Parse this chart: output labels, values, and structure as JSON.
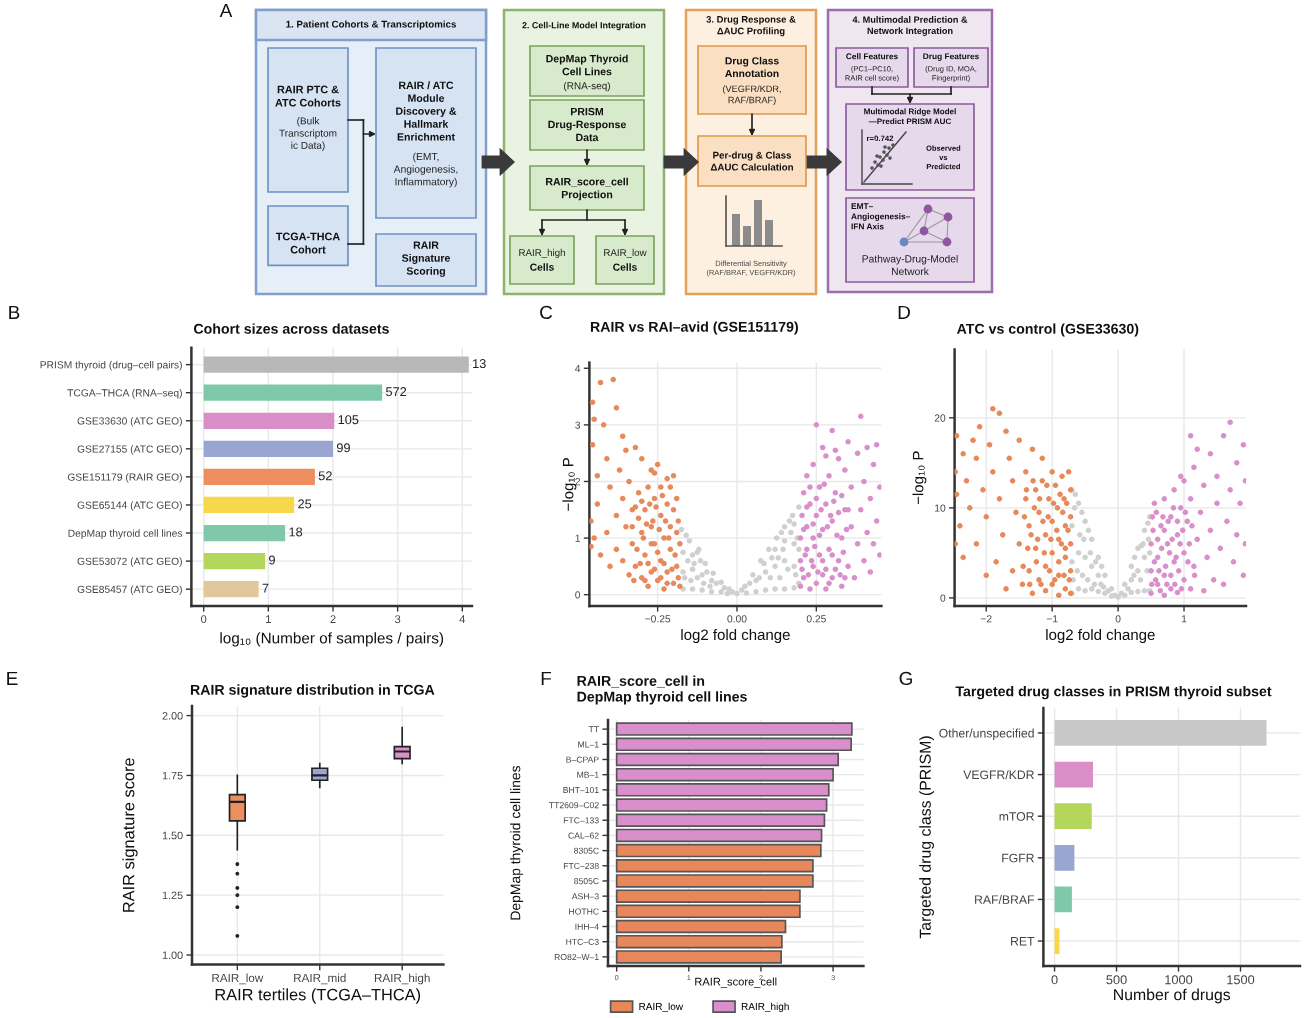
{
  "chart_data": [
    {
      "type": "other",
      "annotations": [
        "A",
        "1. Patient Cohorts & Transcriptomics",
        "RAIR PTC &\nATC Cohorts",
        "(Bulk\nTranscriptom\nic Data)",
        "TCGA-THCA\nCohort",
        "RAIR / ATC\nModule\nDiscovery &\nHallmark\nEnrichment",
        "(EMT,\nAngiogenesis,\nInflammatory)",
        "RAIR\nSignature\nScoring",
        "2. Cell-Line Model Integration",
        "DepMap Thyroid\nCell Lines",
        "(RNA-seq)",
        "PRISM\nDrug-Response\nData",
        "RAIR_score_cell\nProjection",
        "RAIR_high",
        "Cells",
        "RAIR_low",
        "Cells",
        "3. Drug Response &\nΔAUC Profiling",
        "Drug Class\nAnnotation",
        "(VEGFR/KDR,\nRAF/BRAF)",
        "Per-drug & Class\nΔAUC Calculation",
        "Differential Sensitivity\n(RAF/BRAF, VEGFR/KDR)",
        "4. Multimodal Prediction &\nNetwork Integration",
        "Cell Features",
        "(PC1–PC10,\nRAIR cell score)",
        "Drug Features",
        "(Drug ID, MOA,\nFingerprint)",
        "Multimodal Ridge Model\n—Predict PRISM AUC",
        "r=0.742",
        "Observed\nvs\nPredicted",
        "EMT–\nAngiogenesis–\nIFN Axis",
        "Pathway-Drug-Model\nNetwork"
      ]
    },
    {
      "type": "bar",
      "orientation": "horizontal",
      "title": "Cohort sizes across datasets",
      "xlabel": "log₁₀ (Number of samples / pairs)",
      "annotations": [
        "B",
        {
          "text": "13",
          "x": 4.1,
          "y": "PRISM thyroid (drug–cell pairs)"
        },
        {
          "text": "572",
          "x": 2.76,
          "y": "TCGA–THCA (RNA–seq)"
        },
        {
          "text": "105",
          "x": 2.02,
          "y": "GSE33630 (ATC GEO)"
        },
        {
          "text": "99",
          "x": 2.0,
          "y": "GSE27155 (ATC GEO)"
        },
        {
          "text": "52",
          "x": 1.72,
          "y": "GSE151179 (RAIR GEO)"
        },
        {
          "text": "25",
          "x": 1.4,
          "y": "GSE65144 (ATC GEO)"
        },
        {
          "text": "18",
          "x": 1.26,
          "y": "DepMap thyroid cell lines"
        },
        {
          "text": "9",
          "x": 0.95,
          "y": "GSE53072 (ATC GEO)"
        },
        {
          "text": "7",
          "x": 0.85,
          "y": "GSE85457 (ATC GEO)"
        }
      ],
      "categories": [
        "PRISM thyroid (drug–cell pairs)",
        "TCGA–THCA (RNA–seq)",
        "GSE33630 (ATC GEO)",
        "GSE27155 (ATC GEO)",
        "GSE151179 (RAIR GEO)",
        "GSE65144 (ATC GEO)",
        "DepMap thyroid cell lines",
        "GSE53072 (ATC GEO)",
        "GSE85457 (ATC GEO)"
      ],
      "values": [
        4.1,
        2.76,
        2.02,
        2.0,
        1.72,
        1.4,
        1.26,
        0.95,
        0.85
      ],
      "colors": [
        "#b8b8b8",
        "#7fc8a9",
        "#d98ec8",
        "#98a6d1",
        "#ee8d5f",
        "#f7d84a",
        "#7fc8a9",
        "#b3d65b",
        "#e0c89a"
      ],
      "xlim": [
        -0.19,
        4.15
      ],
      "xticks": [
        0,
        1,
        2,
        3,
        4
      ],
      "grid": true
    },
    {
      "type": "scatter",
      "title": "RAIR vs RAI–avid (GSE151179)",
      "xlabel": "log2 fold change",
      "ylabel": "−log₁₀ P",
      "annotations": [
        "C"
      ],
      "marker": "circle",
      "grid": true,
      "xlim": [
        -0.465,
        0.455
      ],
      "xticks": [
        {
          "value": -0.25,
          "label": "−0.25"
        },
        {
          "value": 0,
          "label": "0.00"
        },
        {
          "value": 0.25,
          "label": "0.25"
        }
      ],
      "ylim": [
        -0.2,
        4.1
      ],
      "yticks": [
        0,
        1,
        2,
        3,
        4
      ],
      "series": [
        {
          "color": "#d0d0d0",
          "x": [
            -0.175,
            -0.15,
            -0.125,
            -0.1,
            -0.075,
            -0.05,
            -0.025,
            0,
            0.025,
            0.05,
            0.075,
            0.1,
            0.125,
            0.15,
            0.175,
            0.195,
            -0.17,
            -0.17,
            -0.17,
            -0.14,
            -0.14,
            -0.14,
            -0.11,
            -0.11,
            -0.08,
            -0.08,
            -0.05,
            -0.03,
            0.03,
            0.06,
            0.06,
            0.09,
            0.09,
            0.12,
            0.12,
            0.12,
            0.15,
            0.15,
            0.15,
            0.18,
            0.18,
            0.18,
            0.18,
            0.195,
            0.195,
            -0.16,
            -0.12,
            0.14,
            0.165,
            -0.165,
            -0.155,
            -0.145,
            -0.135,
            -0.125,
            -0.115,
            -0.105,
            -0.095,
            -0.085,
            -0.065,
            -0.04,
            -0.015,
            0.015,
            0.04,
            0.07,
            0.085,
            0.105,
            0.11,
            0.135,
            0.145,
            0.16,
            0.17,
            0.185,
            0.19,
            0.13
          ],
          "values": [
            1.15,
            0.95,
            0.75,
            0.55,
            0.38,
            0.22,
            0.1,
            0.02,
            0.15,
            0.35,
            0.6,
            0.8,
            1.0,
            1.2,
            1.4,
            1.55,
            0.1,
            0.4,
            0.75,
            0.1,
            0.45,
            0.7,
            0.08,
            0.35,
            0.05,
            0.25,
            0.05,
            0.02,
            0.03,
            0.05,
            0.25,
            0.08,
            0.4,
            0.1,
            0.5,
            0.8,
            0.1,
            0.6,
            0.95,
            0.12,
            0.5,
            0.9,
            1.25,
            0.2,
            0.8,
            1.05,
            0.8,
            1.1,
            1.3,
            0.3,
            0.6,
            0.25,
            0.55,
            0.3,
            0.6,
            0.2,
            0.4,
            0.15,
            0.2,
            0.12,
            0.05,
            0.08,
            0.2,
            0.3,
            0.55,
            0.3,
            0.65,
            0.3,
            0.8,
            0.45,
            1.1,
            0.35,
            1.0,
            0.65
          ]
        },
        {
          "color": "#e8895c",
          "x": [
            -0.18,
            -0.19,
            -0.18,
            -0.185,
            -0.19,
            -0.2,
            -0.2,
            -0.21,
            -0.21,
            -0.22,
            -0.22,
            -0.22,
            -0.23,
            -0.23,
            -0.24,
            -0.24,
            -0.24,
            -0.25,
            -0.25,
            -0.26,
            -0.26,
            -0.27,
            -0.27,
            -0.27,
            -0.28,
            -0.28,
            -0.29,
            -0.29,
            -0.3,
            -0.3,
            -0.3,
            -0.31,
            -0.32,
            -0.32,
            -0.33,
            -0.33,
            -0.34,
            -0.34,
            -0.35,
            -0.35,
            -0.36,
            -0.36,
            -0.37,
            -0.38,
            -0.38,
            -0.38,
            -0.39,
            -0.4,
            -0.4,
            -0.41,
            -0.41,
            -0.42,
            -0.43,
            -0.43,
            -0.44,
            -0.44,
            -0.45,
            -0.45,
            -0.455,
            -0.455,
            -0.46,
            -0.46,
            -0.36,
            -0.26,
            -0.185,
            -0.19,
            -0.195,
            -0.2,
            -0.205,
            -0.21,
            -0.215,
            -0.22,
            -0.225,
            -0.23,
            -0.235,
            -0.24,
            -0.245,
            -0.25,
            -0.255,
            -0.26,
            -0.265,
            -0.27,
            -0.275,
            -0.28,
            -0.285,
            -0.29,
            -0.295,
            -0.3,
            -0.305,
            -0.31,
            -0.315,
            -0.32,
            -0.325,
            -0.33
          ],
          "values": [
            0.15,
            0.5,
            0.9,
            1.3,
            1.7,
            2.1,
            0.2,
            0.8,
            1.2,
            0.4,
            1.6,
            2.05,
            0.1,
            1.0,
            0.6,
            1.4,
            1.9,
            0.25,
            2.3,
            0.9,
            1.7,
            0.4,
            1.2,
            2.2,
            0.15,
            1.9,
            0.7,
            1.5,
            0.3,
            1.1,
            2.4,
            1.8,
            0.5,
            2.6,
            0.9,
            1.5,
            0.35,
            2.0,
            1.2,
            2.55,
            0.6,
            1.7,
            2.2,
            0.8,
            1.4,
            3.3,
            3.8,
            0.5,
            1.9,
            1.1,
            2.4,
            3.0,
            3.75,
            0.7,
            1.6,
            2.1,
            3.1,
            1.0,
            2.65,
            3.4,
            0.85,
            1.3,
            2.8,
            2.15,
            0.3,
            1.1,
            0.7,
            1.5,
            0.45,
            1.9,
            1.0,
            0.2,
            1.3,
            0.55,
            1.75,
            0.3,
            1.15,
            0.75,
            1.55,
            0.45,
            1.3,
            0.9,
            1.6,
            0.55,
            1.25,
            0.25,
            1.0,
            1.65,
            0.55,
            1.35,
            0.8,
            1.55,
            0.25,
            1.2
          ]
        },
        {
          "color": "#d88fcb",
          "x": [
            0.2,
            0.2,
            0.2,
            0.205,
            0.21,
            0.21,
            0.22,
            0.22,
            0.22,
            0.23,
            0.23,
            0.24,
            0.24,
            0.24,
            0.25,
            0.25,
            0.25,
            0.26,
            0.26,
            0.27,
            0.27,
            0.27,
            0.28,
            0.28,
            0.29,
            0.29,
            0.3,
            0.3,
            0.3,
            0.31,
            0.32,
            0.32,
            0.33,
            0.33,
            0.34,
            0.34,
            0.35,
            0.35,
            0.36,
            0.36,
            0.37,
            0.38,
            0.38,
            0.39,
            0.39,
            0.4,
            0.4,
            0.41,
            0.41,
            0.42,
            0.42,
            0.43,
            0.43,
            0.44,
            0.44,
            0.45,
            0.45,
            0.31,
            0.28,
            0.205,
            0.21,
            0.215,
            0.22,
            0.225,
            0.23,
            0.235,
            0.24,
            0.245,
            0.25,
            0.255,
            0.26,
            0.265,
            0.27,
            0.275,
            0.28,
            0.285,
            0.29,
            0.295,
            0.3,
            0.305,
            0.31,
            0.315,
            0.32,
            0.325,
            0.33,
            0.335,
            0.34,
            0.345,
            0.35
          ],
          "values": [
            0.15,
            0.6,
            1.0,
            1.4,
            1.8,
            0.3,
            0.8,
            1.2,
            2.1,
            0.1,
            1.6,
            0.5,
            1.0,
            2.3,
            0.2,
            1.4,
            3.0,
            0.7,
            1.9,
            0.35,
            1.15,
            2.6,
            0.1,
            1.6,
            0.8,
            2.1,
            0.3,
            1.3,
            2.9,
            1.8,
            0.6,
            2.4,
            1.0,
            0.15,
            1.5,
            2.2,
            0.5,
            2.7,
            1.2,
            1.9,
            0.3,
            0.9,
            2.5,
            3.15,
            1.5,
            0.6,
            2.0,
            1.1,
            2.6,
            0.4,
            1.7,
            2.3,
            0.9,
            1.3,
            2.65,
            0.7,
            1.9,
            2.55,
            2.45,
            0.45,
            1.15,
            0.7,
            1.55,
            0.35,
            1.9,
            0.6,
            1.25,
            0.85,
            1.7,
            0.4,
            1.05,
            1.5,
            0.6,
            1.95,
            0.45,
            1.2,
            0.2,
            1.4,
            0.7,
            1.65,
            0.45,
            1.05,
            1.45,
            0.35,
            1.75,
            0.75,
            0.3,
            1.15,
            1.5
          ]
        }
      ]
    },
    {
      "type": "scatter",
      "title": "ATC vs control (GSE33630)",
      "xlabel": "log2 fold change",
      "ylabel": "−log₁₀ P",
      "annotations": [
        "D"
      ],
      "marker": "circle",
      "grid": true,
      "xlim": [
        -2.48,
        1.94
      ],
      "xticks": [
        {
          "value": -2,
          "label": "−2"
        },
        {
          "value": -1,
          "label": "−1"
        },
        0,
        1
      ],
      "ylim": [
        -0.9,
        27.6
      ],
      "yticks": [
        0,
        10,
        20
      ],
      "series": [
        {
          "color": "#d0d0d0",
          "x": [
            -0.7,
            -0.6,
            -0.5,
            -0.4,
            -0.3,
            -0.2,
            -0.1,
            0,
            0.1,
            0.2,
            0.3,
            0.4,
            0.48,
            -0.7,
            -0.7,
            -0.7,
            -0.6,
            -0.6,
            -0.5,
            -0.5,
            -0.4,
            -0.4,
            -0.3,
            -0.3,
            -0.2,
            -0.1,
            0.1,
            0.2,
            0.2,
            0.3,
            0.3,
            0.4,
            0.4,
            0.48,
            0.48,
            -0.65,
            -0.55,
            -0.45,
            0.45,
            -0.25,
            0.25,
            -0.68,
            -0.66,
            -0.62,
            -0.58,
            -0.54,
            -0.52,
            -0.46,
            -0.42,
            -0.36,
            -0.34,
            -0.26,
            -0.22,
            -0.15,
            -0.05,
            0.05,
            0.15,
            0.24,
            0.34,
            0.38,
            0.44,
            0.46,
            0.35
          ],
          "values": [
            12,
            10.5,
            8.5,
            6.5,
            4.5,
            2.5,
            1,
            0.1,
            1.5,
            3.5,
            5.5,
            7.5,
            9,
            0.5,
            4,
            8,
            1,
            5,
            0.8,
            4.5,
            1,
            3.5,
            0.7,
            2.5,
            0.5,
            0.2,
            0.3,
            0.6,
            2,
            0.7,
            3,
            0.8,
            4.5,
            0.8,
            5,
            11.5,
            9.5,
            7.5,
            8.3,
            3.5,
            4.5,
            2,
            10,
            3,
            7,
            2.5,
            6.5,
            2,
            5,
            1.5,
            4,
            1.5,
            1.2,
            0.8,
            0.3,
            0.5,
            1,
            2.5,
            2,
            6,
            3,
            6.5,
            5.8
          ]
        },
        {
          "color": "#e8895c",
          "x": [
            -0.72,
            -0.72,
            -0.72,
            -0.72,
            -0.72,
            -0.75,
            -0.8,
            -0.8,
            -0.8,
            -0.82,
            -0.85,
            -0.9,
            -0.9,
            -0.9,
            -0.92,
            -0.95,
            -1.0,
            -1.0,
            -1.0,
            -1.0,
            -1.05,
            -1.1,
            -1.1,
            -1.1,
            -1.15,
            -1.15,
            -1.2,
            -1.2,
            -1.25,
            -1.25,
            -1.3,
            -1.3,
            -1.35,
            -1.35,
            -1.4,
            -1.4,
            -1.45,
            -1.5,
            -1.5,
            -1.55,
            -1.6,
            -1.6,
            -1.65,
            -1.7,
            -1.7,
            -1.75,
            -1.8,
            -1.8,
            -1.85,
            -1.9,
            -1.9,
            -1.95,
            -2.0,
            -2.0,
            -2.05,
            -2.1,
            -2.15,
            -2.15,
            -2.2,
            -2.25,
            -2.3,
            -2.35,
            -2.35,
            -2.4,
            -2.45,
            -2.45,
            -2.47,
            -2.47,
            -0.74,
            -0.76,
            -0.78,
            -0.8,
            -0.82,
            -0.84,
            -0.86,
            -0.88,
            -0.9,
            -0.93,
            -0.96,
            -0.98,
            -1.02,
            -1.04,
            -1.06,
            -1.08,
            -1.12,
            -1.14,
            -1.17,
            -1.19,
            -1.22,
            -1.24,
            -1.27,
            -1.29,
            -1.32,
            -1.34,
            -1.37,
            -1.39,
            -1.42,
            -1.44
          ],
          "values": [
            0.5,
            3,
            6,
            9,
            12,
            14,
            1,
            4.5,
            8,
            11,
            13.5,
            0.3,
            2.5,
            6.5,
            10,
            12.5,
            1.5,
            5,
            8.5,
            14,
            11,
            0.8,
            3.5,
            7,
            13,
            15.5,
            2,
            9.5,
            5.5,
            12,
            0.5,
            16.5,
            3,
            8,
            11,
            14,
            1.5,
            6,
            17.5,
            9.5,
            3,
            13,
            15.5,
            18.5,
            1,
            7,
            11,
            20.5,
            4,
            14,
            21,
            17,
            9,
            2.5,
            12,
            19,
            6,
            15.5,
            17.5,
            10,
            13,
            4.5,
            16,
            8,
            11.5,
            18,
            14,
            6,
            2,
            7.5,
            10.5,
            5.5,
            2.5,
            9.5,
            6,
            11.5,
            4,
            7.5,
            2,
            10.5,
            6.5,
            3,
            9,
            12.5,
            5,
            8.5,
            1.5,
            11,
            6.5,
            4,
            10,
            13,
            7,
            1.5,
            5.5,
            12,
            9,
            3.5
          ]
        },
        {
          "color": "#d88fcb",
          "x": [
            0.5,
            0.5,
            0.5,
            0.52,
            0.55,
            0.6,
            0.6,
            0.65,
            0.7,
            0.7,
            0.7,
            0.75,
            0.8,
            0.8,
            0.85,
            0.85,
            0.9,
            0.9,
            0.95,
            1.0,
            1.0,
            1.0,
            1.05,
            1.1,
            1.1,
            1.15,
            1.15,
            1.2,
            1.25,
            1.3,
            1.3,
            1.35,
            1.4,
            1.4,
            1.45,
            1.5,
            1.5,
            1.55,
            1.6,
            1.6,
            1.65,
            1.7,
            1.7,
            1.75,
            1.8,
            1.8,
            1.85,
            1.9,
            1.9,
            1.93,
            1.93,
            1.2,
            1.1,
            0.95,
            0.51,
            0.53,
            0.55,
            0.57,
            0.58,
            0.6,
            0.62,
            0.64,
            0.66,
            0.68,
            0.7,
            0.72,
            0.74,
            0.76,
            0.78,
            0.8,
            0.82,
            0.84,
            0.86,
            0.88,
            0.9,
            0.92,
            0.94,
            0.96,
            0.98,
            1.02,
            1.06,
            1.08,
            1.12,
            1.16
          ],
          "values": [
            0.5,
            3,
            6,
            9,
            10.5,
            1.5,
            4.5,
            8,
            0.3,
            2.5,
            11,
            6,
            1,
            9,
            4,
            12,
            0.6,
            7,
            10,
            2,
            5,
            13,
            8.5,
            1,
            11,
            3.5,
            14.5,
            6.5,
            9.5,
            0.8,
            12.5,
            4.5,
            16,
            7.5,
            2,
            10.5,
            13.5,
            5.5,
            18,
            1.5,
            8.5,
            19.5,
            12,
            4,
            15,
            7,
            10.5,
            2.5,
            17,
            13,
            6,
            16.5,
            18,
            13.5,
            1.5,
            7.5,
            4,
            2,
            9.5,
            6.5,
            3,
            0.8,
            5.5,
            9,
            7.5,
            3.5,
            1.5,
            8.5,
            5,
            2.5,
            6.5,
            10,
            1.5,
            4.5,
            8.5,
            3,
            6,
            1,
            7.5,
            9.5,
            4,
            6,
            8,
            2.5
          ]
        }
      ]
    },
    {
      "type": "box",
      "title": "RAIR signature distribution in TCGA",
      "xlabel": "RAIR tertiles (TCGA–THCA)",
      "ylabel": "RAIR signature score",
      "annotations": [
        "E"
      ],
      "grid": true,
      "categories": [
        "RAIR_low",
        "RAIR_mid",
        "RAIR_high"
      ],
      "boxes": [
        {
          "low": 1.44,
          "q1": 1.56,
          "median": 1.64,
          "q3": 1.67,
          "high": 1.75,
          "outliers": [
            1.38,
            1.34,
            1.28,
            1.25,
            1.2,
            1.08
          ]
        },
        {
          "low": 1.7,
          "q1": 1.73,
          "median": 1.75,
          "q3": 1.78,
          "high": 1.8
        },
        {
          "low": 1.8,
          "q1": 1.82,
          "median": 1.85,
          "q3": 1.87,
          "high": 1.95
        }
      ],
      "colors": [
        "#eb8f5f",
        "#9aa7d3",
        "#d892c8"
      ],
      "ylim": [
        0.96,
        2.04
      ],
      "yticks": [
        {
          "value": 1,
          "label": "1.00"
        },
        {
          "value": 1.25,
          "label": "1.25"
        },
        {
          "value": 1.5,
          "label": "1.50"
        },
        {
          "value": 1.75,
          "label": "1.75"
        },
        {
          "value": 2,
          "label": "2.00"
        }
      ]
    },
    {
      "type": "bar",
      "orientation": "horizontal",
      "title": "RAIR_score_cell in\nDepMap thyroid cell lines",
      "xlabel": "RAIR_score_cell",
      "ylabel": "DepMap thyroid cell lines",
      "annotations": [
        "F"
      ],
      "grid": true,
      "legend": "bottom",
      "categories": [
        "TT",
        "ML–1",
        "B–CPAP",
        "MB–1",
        "BHT–101",
        "TT2609–C02",
        "FTC–133",
        "CAL–62",
        "8305C",
        "FTC–238",
        "8505C",
        "ASH–3",
        "HOTHC",
        "IHH–4",
        "HTC–C3",
        "RO82–W–1"
      ],
      "series": [
        {
          "name": "RAIR_low",
          "color": "#e8875a",
          "values": [
            null,
            null,
            null,
            null,
            null,
            null,
            null,
            null,
            2.83,
            2.72,
            2.72,
            2.54,
            2.54,
            2.34,
            2.29,
            2.28
          ]
        },
        {
          "name": "RAIR_high",
          "color": "#d88fcb",
          "values": [
            3.26,
            3.25,
            3.07,
            3.0,
            2.94,
            2.91,
            2.88,
            2.84,
            null,
            null,
            null,
            null,
            null,
            null,
            null,
            null
          ]
        }
      ],
      "xlim": [
        -0.12,
        3.42
      ],
      "xticks": [
        0,
        1,
        2,
        3
      ]
    },
    {
      "type": "bar",
      "orientation": "horizontal",
      "title": "Targeted drug classes in PRISM thyroid subset",
      "xlabel": "Number of drugs",
      "ylabel": "Targeted drug class (PRISM)",
      "annotations": [
        "G"
      ],
      "grid": true,
      "categories": [
        "Other/unspecified",
        "VEGFR/KDR",
        "mTOR",
        "FGFR",
        "RAF/BRAF",
        "RET"
      ],
      "values": [
        1710,
        310,
        300,
        160,
        140,
        40
      ],
      "colors": [
        "#c8c8c8",
        "#d98ec8",
        "#b3d65b",
        "#98a6d1",
        "#7fc8a9",
        "#f7d84a"
      ],
      "xlim": [
        -90,
        1980
      ],
      "xticks": [
        0,
        500,
        1000,
        1500
      ]
    }
  ]
}
